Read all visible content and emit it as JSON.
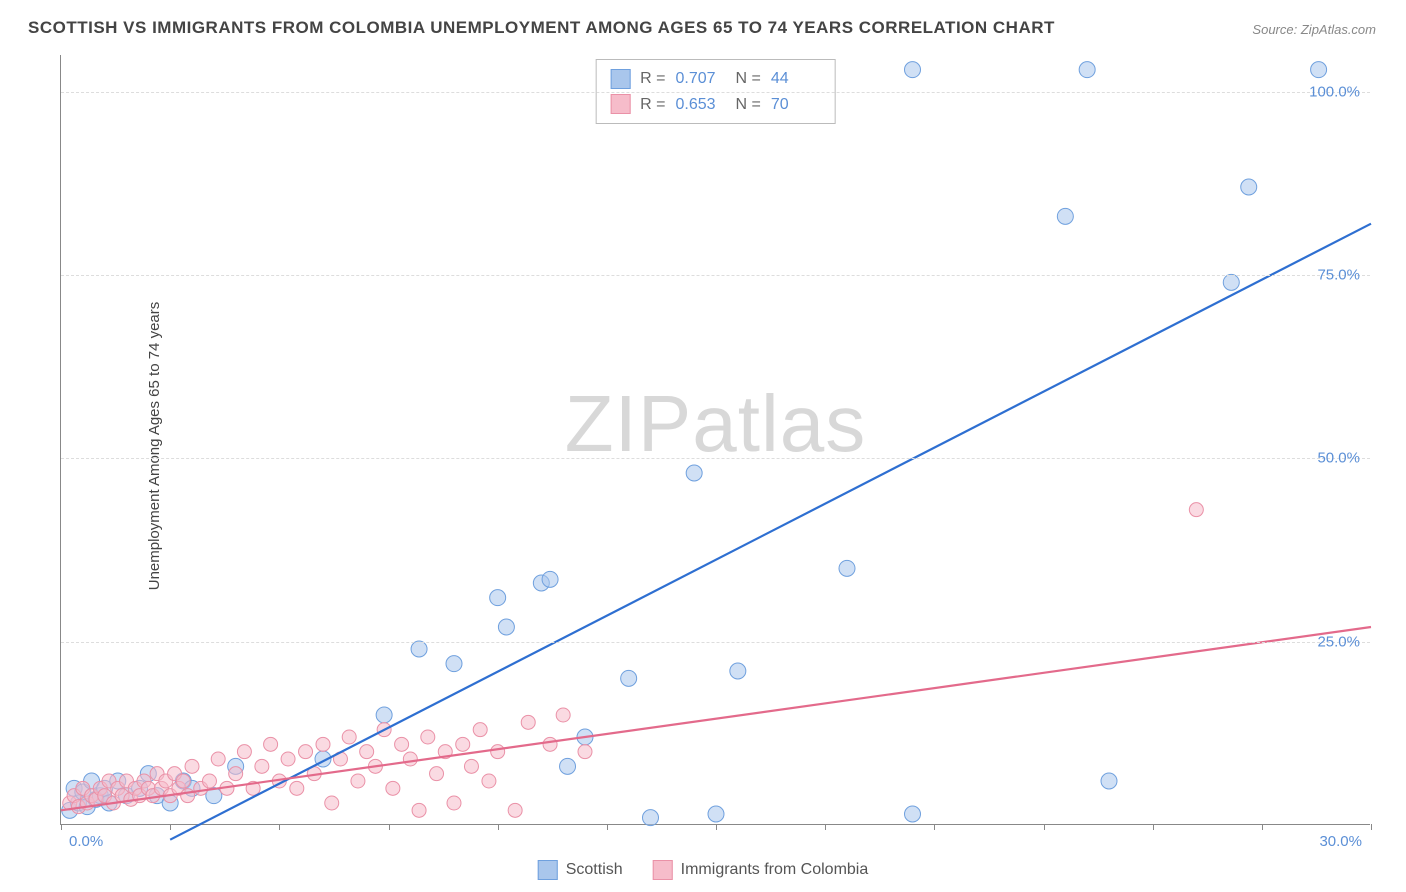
{
  "title": "SCOTTISH VS IMMIGRANTS FROM COLOMBIA UNEMPLOYMENT AMONG AGES 65 TO 74 YEARS CORRELATION CHART",
  "source_label": "Source:",
  "source_name": "ZipAtlas.com",
  "ylabel": "Unemployment Among Ages 65 to 74 years",
  "watermark_a": "ZIP",
  "watermark_b": "atlas",
  "chart": {
    "type": "scatter",
    "xlim": [
      0,
      30
    ],
    "ylim": [
      0,
      105
    ],
    "x_tick_step": 2.5,
    "y_gridlines": [
      25,
      50,
      75,
      100
    ],
    "y_tick_labels": [
      "25.0%",
      "50.0%",
      "75.0%",
      "100.0%"
    ],
    "x_left_label": "0.0%",
    "x_right_label": "30.0%",
    "background_color": "#ffffff",
    "grid_color": "#dddddd",
    "axis_color": "#888888",
    "tick_label_color": "#5b8fd6"
  },
  "series": [
    {
      "name": "Scottish",
      "color_fill": "#a9c6ec",
      "color_stroke": "#6fa0de",
      "line_color": "#2e6fd1",
      "marker_radius": 8,
      "fill_opacity": 0.55,
      "line_width": 2.2,
      "R": "0.707",
      "N": "44",
      "regression": {
        "x1": 2.5,
        "y1": -2,
        "x2": 30,
        "y2": 82
      },
      "points": [
        [
          0.2,
          2
        ],
        [
          0.3,
          5
        ],
        [
          0.4,
          3
        ],
        [
          0.5,
          4.5
        ],
        [
          0.6,
          2.5
        ],
        [
          0.7,
          6
        ],
        [
          0.8,
          3.5
        ],
        [
          0.9,
          4
        ],
        [
          1.0,
          5
        ],
        [
          1.1,
          3
        ],
        [
          1.3,
          6
        ],
        [
          1.5,
          4
        ],
        [
          1.8,
          5
        ],
        [
          2.0,
          7
        ],
        [
          2.2,
          4
        ],
        [
          2.5,
          3
        ],
        [
          2.8,
          6
        ],
        [
          3.0,
          5
        ],
        [
          3.5,
          4
        ],
        [
          4.0,
          8
        ],
        [
          6.0,
          9
        ],
        [
          7.4,
          15
        ],
        [
          8.2,
          24
        ],
        [
          9.0,
          22
        ],
        [
          10.0,
          31
        ],
        [
          10.2,
          27
        ],
        [
          11.0,
          33
        ],
        [
          11.2,
          33.5
        ],
        [
          11.6,
          8
        ],
        [
          12.0,
          12
        ],
        [
          13.0,
          20
        ],
        [
          13.5,
          1
        ],
        [
          14.5,
          48
        ],
        [
          15.0,
          1.5
        ],
        [
          15.5,
          21
        ],
        [
          18.0,
          35
        ],
        [
          19.5,
          1.5
        ],
        [
          19.5,
          103
        ],
        [
          23.0,
          83
        ],
        [
          23.5,
          103
        ],
        [
          24.0,
          6
        ],
        [
          26.8,
          74
        ],
        [
          27.2,
          87
        ],
        [
          28.8,
          103
        ]
      ]
    },
    {
      "name": "Immigrants from Colombia",
      "color_fill": "#f6bcca",
      "color_stroke": "#ea91a7",
      "line_color": "#e36a8b",
      "marker_radius": 7,
      "fill_opacity": 0.55,
      "line_width": 2.2,
      "R": "0.653",
      "N": "70",
      "regression": {
        "x1": 0,
        "y1": 2,
        "x2": 30,
        "y2": 27
      },
      "points": [
        [
          0.2,
          3
        ],
        [
          0.3,
          4
        ],
        [
          0.4,
          2.5
        ],
        [
          0.5,
          5
        ],
        [
          0.6,
          3
        ],
        [
          0.7,
          4
        ],
        [
          0.8,
          3.5
        ],
        [
          0.9,
          5
        ],
        [
          1.0,
          4
        ],
        [
          1.1,
          6
        ],
        [
          1.2,
          3
        ],
        [
          1.3,
          5
        ],
        [
          1.4,
          4
        ],
        [
          1.5,
          6
        ],
        [
          1.6,
          3.5
        ],
        [
          1.7,
          5
        ],
        [
          1.8,
          4
        ],
        [
          1.9,
          6
        ],
        [
          2.0,
          5
        ],
        [
          2.1,
          4
        ],
        [
          2.2,
          7
        ],
        [
          2.3,
          5
        ],
        [
          2.4,
          6
        ],
        [
          2.5,
          4
        ],
        [
          2.6,
          7
        ],
        [
          2.7,
          5
        ],
        [
          2.8,
          6
        ],
        [
          2.9,
          4
        ],
        [
          3.0,
          8
        ],
        [
          3.2,
          5
        ],
        [
          3.4,
          6
        ],
        [
          3.6,
          9
        ],
        [
          3.8,
          5
        ],
        [
          4.0,
          7
        ],
        [
          4.2,
          10
        ],
        [
          4.4,
          5
        ],
        [
          4.6,
          8
        ],
        [
          4.8,
          11
        ],
        [
          5.0,
          6
        ],
        [
          5.2,
          9
        ],
        [
          5.4,
          5
        ],
        [
          5.6,
          10
        ],
        [
          5.8,
          7
        ],
        [
          6.0,
          11
        ],
        [
          6.2,
          3
        ],
        [
          6.4,
          9
        ],
        [
          6.6,
          12
        ],
        [
          6.8,
          6
        ],
        [
          7.0,
          10
        ],
        [
          7.2,
          8
        ],
        [
          7.4,
          13
        ],
        [
          7.6,
          5
        ],
        [
          7.8,
          11
        ],
        [
          8.0,
          9
        ],
        [
          8.2,
          2
        ],
        [
          8.4,
          12
        ],
        [
          8.6,
          7
        ],
        [
          8.8,
          10
        ],
        [
          9.0,
          3
        ],
        [
          9.2,
          11
        ],
        [
          9.4,
          8
        ],
        [
          9.6,
          13
        ],
        [
          9.8,
          6
        ],
        [
          10.0,
          10
        ],
        [
          10.4,
          2
        ],
        [
          10.7,
          14
        ],
        [
          11.2,
          11
        ],
        [
          11.5,
          15
        ],
        [
          12.0,
          10
        ],
        [
          26.0,
          43
        ]
      ]
    }
  ],
  "stats_labels": {
    "R": "R =",
    "N": "N ="
  },
  "legend_labels": [
    "Scottish",
    "Immigrants from Colombia"
  ]
}
